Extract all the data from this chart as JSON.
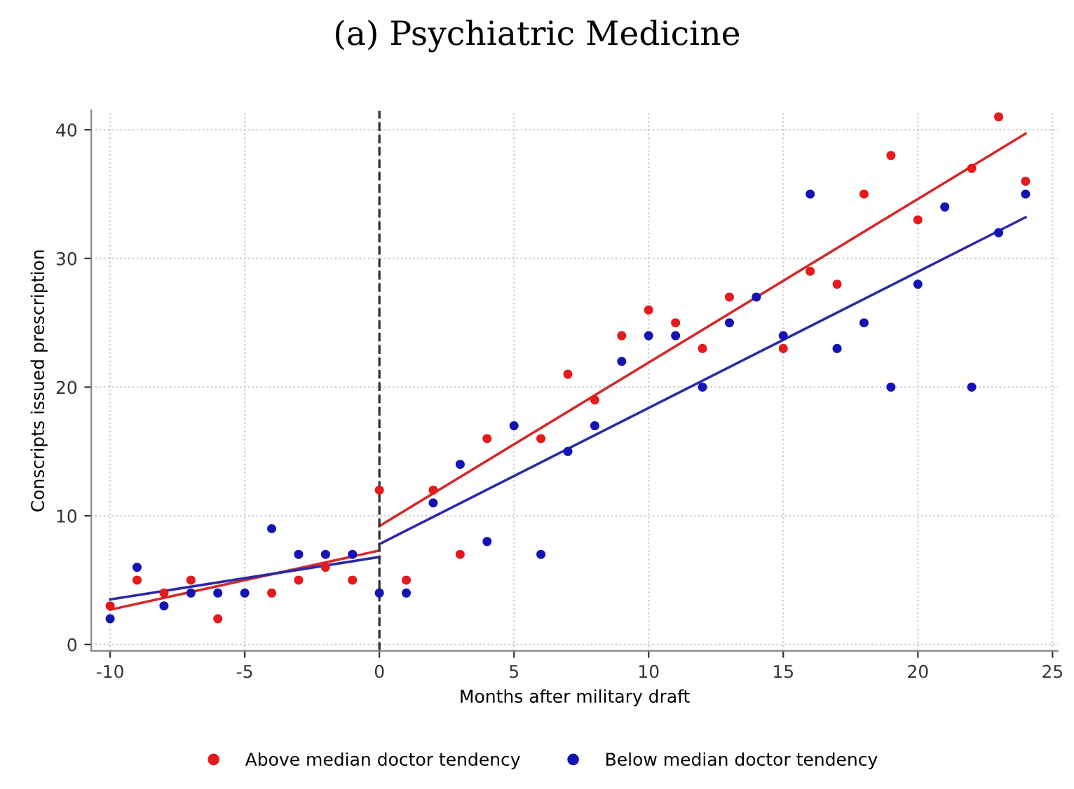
{
  "chart_data": {
    "type": "scatter",
    "title": "(a) Psychiatric Medicine",
    "xlabel": "Months after military draft",
    "ylabel": "Conscripts issued prescription",
    "series": [
      {
        "name": "Above median doctor tendency",
        "color": "#e41a1c",
        "marker": "circle",
        "x": [
          -10,
          -9,
          -8,
          -7,
          -6,
          -4,
          -3,
          -2,
          -1,
          0,
          1,
          2,
          3,
          4,
          6,
          7,
          8,
          9,
          10,
          11,
          12,
          13,
          15,
          16,
          17,
          18,
          19,
          20,
          22,
          23,
          24
        ],
        "values": [
          3,
          5,
          4,
          5,
          2,
          4,
          5,
          6,
          5,
          12,
          5,
          12,
          7,
          16,
          16,
          21,
          19,
          24,
          26,
          25,
          23,
          27,
          23,
          29,
          28,
          35,
          38,
          33,
          37,
          41,
          36
        ]
      },
      {
        "name": "Below median doctor tendency",
        "color": "#1414b4",
        "marker": "circle",
        "x": [
          -10,
          -9,
          -8,
          -7,
          -6,
          -5,
          -4,
          -3,
          -2,
          -1,
          0,
          1,
          2,
          3,
          4,
          5,
          6,
          7,
          8,
          9,
          10,
          11,
          12,
          13,
          14,
          15,
          16,
          17,
          18,
          19,
          20,
          21,
          22,
          23,
          24
        ],
        "values": [
          2,
          6,
          3,
          4,
          4,
          4,
          9,
          7,
          7,
          7,
          4,
          4,
          11,
          14,
          8,
          17,
          7,
          15,
          17,
          22,
          24,
          24,
          20,
          25,
          27,
          24,
          35,
          23,
          25,
          20,
          28,
          34,
          20,
          32,
          35
        ]
      },
      {
        "type": "line",
        "color": "#d42a2a",
        "x": [
          -10,
          0
        ],
        "values": [
          2.7,
          7.3
        ]
      },
      {
        "type": "line",
        "color": "#d42a2a",
        "x": [
          0,
          24
        ],
        "values": [
          9.2,
          39.7
        ]
      },
      {
        "type": "line",
        "color": "#2a2aa8",
        "x": [
          -10,
          0
        ],
        "values": [
          3.5,
          6.8
        ]
      },
      {
        "type": "line",
        "color": "#2a2aa8",
        "x": [
          0,
          24
        ],
        "values": [
          7.8,
          33.2
        ]
      }
    ],
    "xlim": [
      -10.7,
      25.2
    ],
    "ylim": [
      -0.5,
      41.5
    ],
    "xticks": [
      -10,
      -5,
      0,
      5,
      10,
      15,
      20,
      25
    ],
    "yticks": [
      0,
      10,
      20,
      30,
      40
    ],
    "ref_lines": [
      {
        "axis": "x",
        "value": 0,
        "color": "#333333",
        "line_style": "dashed"
      }
    ],
    "grid": true,
    "legend": "bottom"
  }
}
